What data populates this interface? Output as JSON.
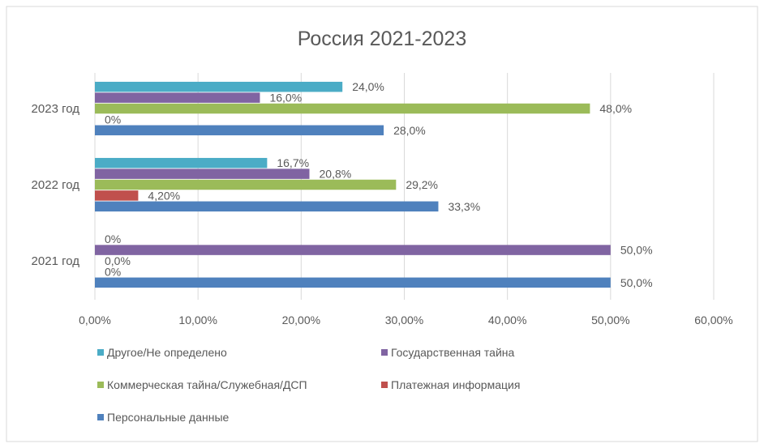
{
  "chart_data": {
    "type": "bar",
    "orientation": "horizontal",
    "title": "Россия 2021-2023",
    "categories": [
      "2023 год",
      "2022 год",
      "2021 год"
    ],
    "series": [
      {
        "name": "Другое/Не определено",
        "color": "#4bacc6",
        "values": [
          24.0,
          16.7,
          0
        ],
        "labels": [
          "24,0%",
          "16,7%",
          "0%"
        ]
      },
      {
        "name": "Государственная тайна",
        "color": "#8064a2",
        "values": [
          16.0,
          20.8,
          50.0
        ],
        "labels": [
          "16,0%",
          "20,8%",
          "50,0%"
        ]
      },
      {
        "name": "Коммерческая тайна/Служебная/ДСП",
        "color": "#9bbb59",
        "values": [
          48.0,
          29.2,
          0
        ],
        "labels": [
          "48,0%",
          "29,2%",
          "0,0%"
        ]
      },
      {
        "name": "Платежная информация",
        "color": "#c0504d",
        "values": [
          0,
          4.2,
          0
        ],
        "labels": [
          "0%",
          "4,20%",
          "0%"
        ]
      },
      {
        "name": "Персональные данные",
        "color": "#4f81bd",
        "values": [
          28.0,
          33.3,
          50.0
        ],
        "labels": [
          "28,0%",
          "33,3%",
          "50,0%"
        ]
      }
    ],
    "xlim": [
      0,
      60
    ],
    "xticks": [
      0,
      10,
      20,
      30,
      40,
      50,
      60
    ],
    "xtick_labels": [
      "0,00%",
      "10,00%",
      "20,00%",
      "30,00%",
      "40,00%",
      "50,00%",
      "60,00%"
    ],
    "grid": "vertical",
    "legend_placement": "bottom",
    "xlabel": "",
    "ylabel": ""
  }
}
